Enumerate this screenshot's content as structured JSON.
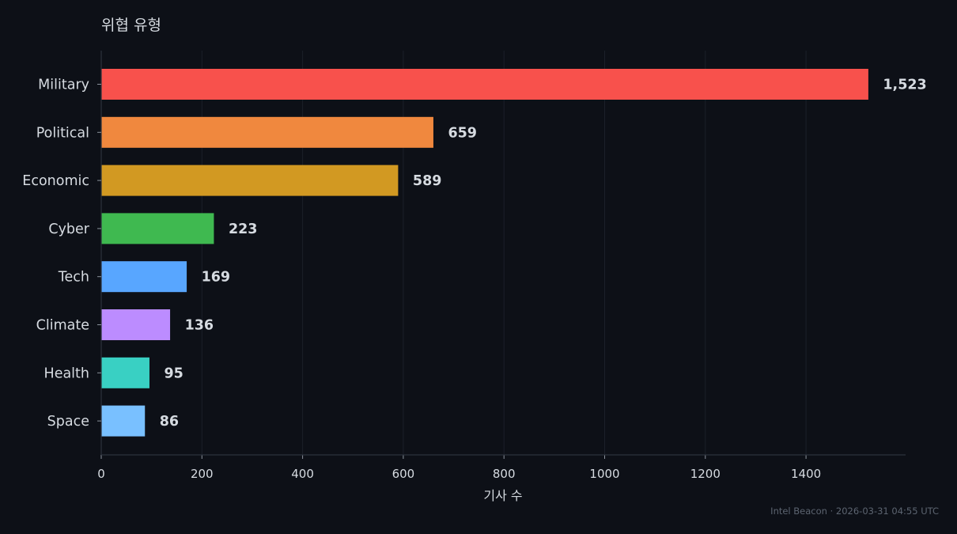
{
  "chart_data": {
    "type": "bar",
    "orientation": "horizontal",
    "title": "위협 유형",
    "xlabel": "기사 수",
    "ylabel": "",
    "xlim": [
      0,
      1600
    ],
    "xticks": [
      0,
      200,
      400,
      600,
      800,
      1000,
      1200,
      1400
    ],
    "grid": "vertical",
    "categories": [
      "Military",
      "Political",
      "Economic",
      "Cyber",
      "Tech",
      "Climate",
      "Health",
      "Space"
    ],
    "values": [
      1523,
      659,
      589,
      223,
      169,
      136,
      95,
      86
    ],
    "value_labels": [
      "1,523",
      "659",
      "589",
      "223",
      "169",
      "136",
      "95",
      "86"
    ],
    "colors": [
      "#f8514c",
      "#f0883e",
      "#d29922",
      "#3fb950",
      "#58a6ff",
      "#bc8cff",
      "#39d0c3",
      "#79c0ff"
    ]
  },
  "footer": {
    "credit": "Intel Beacon · 2026-03-31 04:55 UTC"
  },
  "theme": {
    "background": "#0d1017",
    "text": "#d6dbe1",
    "muted": "#5c6470",
    "grid": "#1b2029",
    "axis": "#2c323c"
  }
}
